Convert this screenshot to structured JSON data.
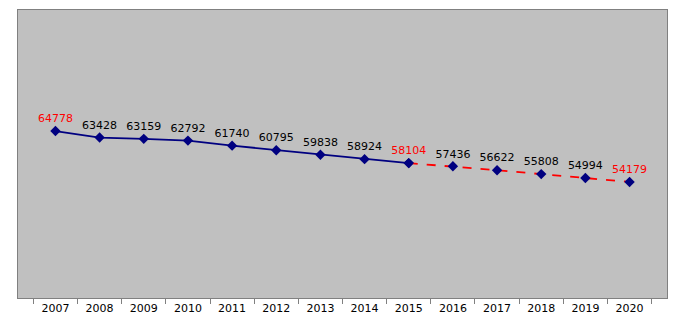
{
  "chart_data": {
    "type": "line",
    "categories": [
      "2007",
      "2008",
      "2009",
      "2010",
      "2011",
      "2012",
      "2013",
      "2014",
      "2015",
      "2016",
      "2017",
      "2018",
      "2019",
      "2020"
    ],
    "series": [
      {
        "color": "#000080",
        "line_style": "solid",
        "values": [
          64778,
          63428,
          63159,
          62792,
          61740,
          60795,
          59838,
          58924,
          58104,
          null,
          null,
          null,
          null,
          null
        ]
      },
      {
        "color": "#ff0000",
        "line_style": "dashed",
        "values": [
          null,
          null,
          null,
          null,
          null,
          null,
          null,
          null,
          58104,
          57436,
          56622,
          55808,
          54994,
          54179
        ]
      }
    ],
    "ylim": [
      30000,
      90000
    ],
    "marker": "diamond",
    "data_labels": true,
    "tick_labels": "x",
    "grid": false
  }
}
